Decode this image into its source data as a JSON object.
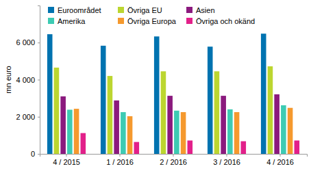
{
  "chart_data": {
    "type": "bar",
    "y_label": "mn euro",
    "categories": [
      "4 / 2015",
      "1 / 2016",
      "2 / 2016",
      "3 / 2016",
      "4 / 2016"
    ],
    "series": [
      {
        "name": "Euroområdet",
        "color": "#0073b0",
        "values": [
          6450,
          5830,
          6330,
          5780,
          6480
        ]
      },
      {
        "name": "Övriga EU",
        "color": "#bcd630",
        "values": [
          4650,
          4200,
          4450,
          4450,
          4720
        ]
      },
      {
        "name": "Asien",
        "color": "#8b1a7e",
        "values": [
          3100,
          2880,
          3130,
          3130,
          3210
        ]
      },
      {
        "name": "Amerika",
        "color": "#3dcbb3",
        "values": [
          2380,
          2250,
          2330,
          2400,
          2620
        ]
      },
      {
        "name": "Övriga Europa",
        "color": "#f5992e",
        "values": [
          2430,
          2030,
          2250,
          2250,
          2480
        ]
      },
      {
        "name": "Övriga och okänd",
        "color": "#e2208a",
        "values": [
          1120,
          640,
          720,
          680,
          720
        ]
      }
    ],
    "ylim": [
      0,
      8000
    ],
    "yticks": [
      0,
      {
        "value": 2000,
        "label": "2 000"
      },
      {
        "value": 4000,
        "label": "4 000"
      },
      {
        "value": 6000,
        "label": "6 000"
      }
    ],
    "grid": false,
    "legend": "top"
  }
}
